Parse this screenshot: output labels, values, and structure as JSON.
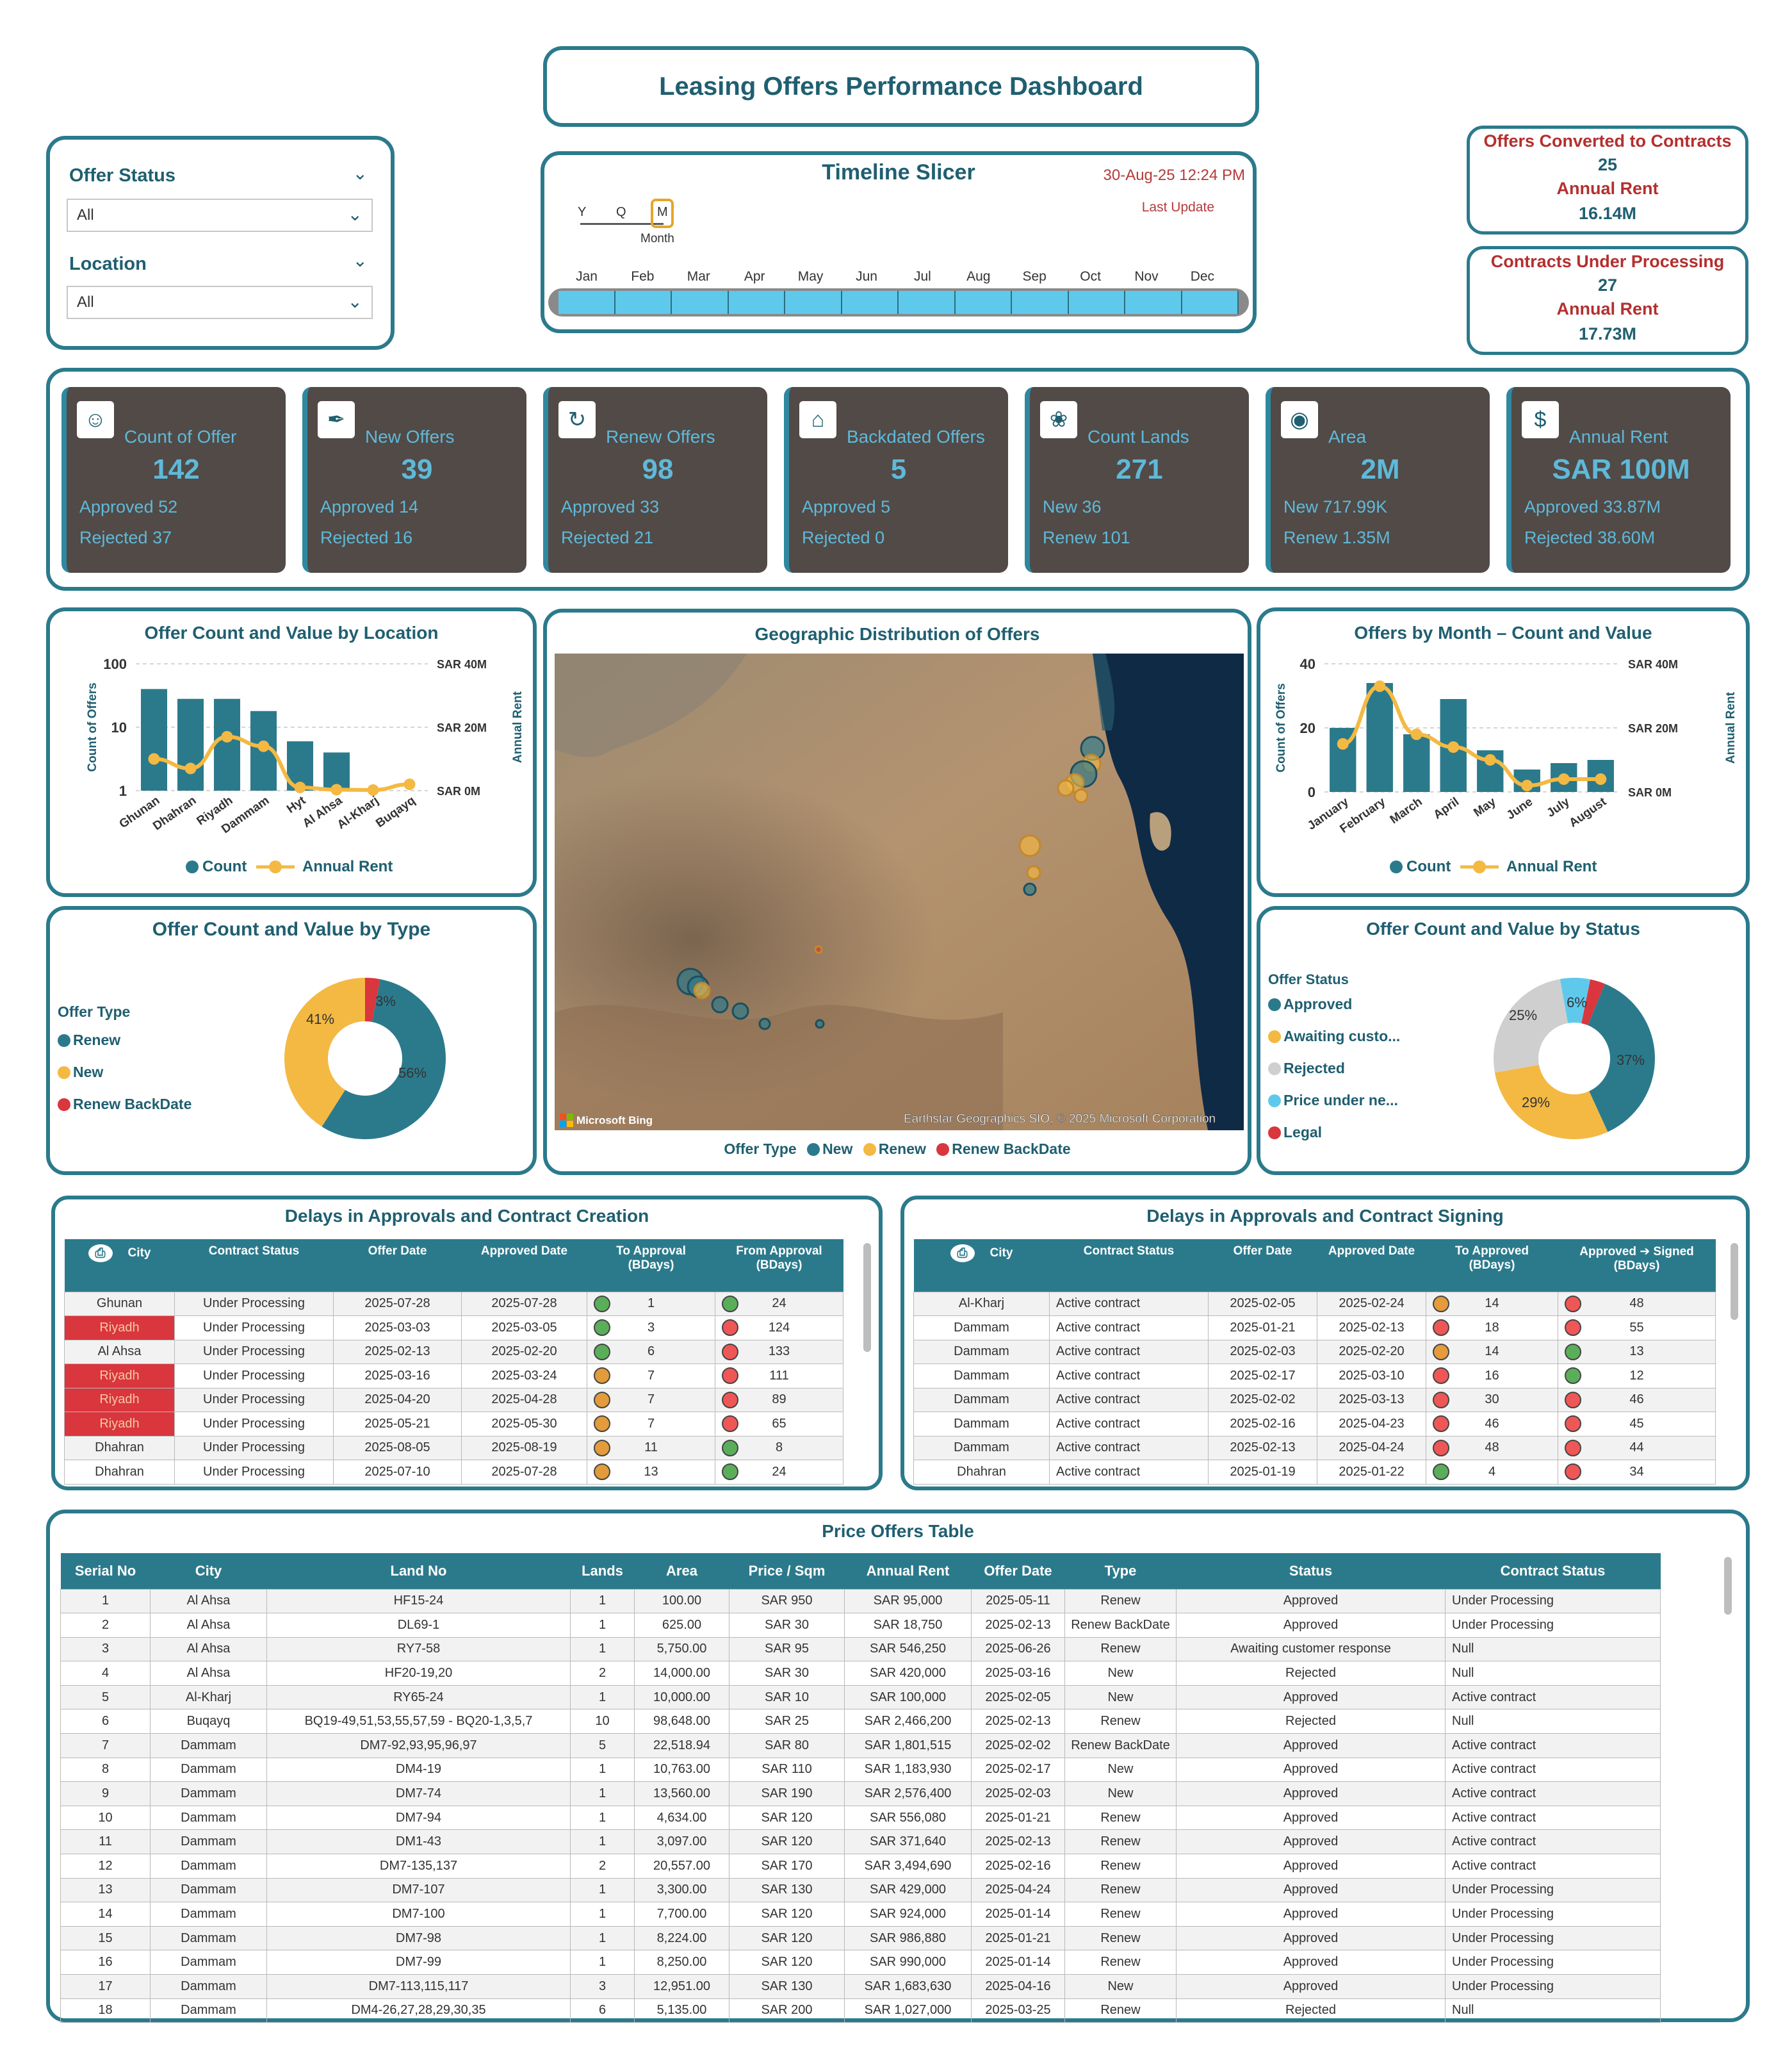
{
  "header": {
    "title": "Leasing Offers Performance Dashboard"
  },
  "slicers": {
    "offer_status": {
      "label": "Offer Status",
      "value": "All"
    },
    "location": {
      "label": "Location",
      "value": "All"
    }
  },
  "timeline": {
    "title": "Timeline Slicer",
    "date": "30-Aug-25 12:24 PM",
    "last_update": "Last Update",
    "levels": [
      "Y",
      "Q",
      "M"
    ],
    "level_caption": "Month",
    "months": [
      "Jan",
      "Feb",
      "Mar",
      "Apr",
      "May",
      "Jun",
      "Jul",
      "Aug",
      "Sep",
      "Oct",
      "Nov",
      "Dec"
    ]
  },
  "summary": {
    "converted": {
      "label": "Offers Converted to Contracts",
      "count": "25",
      "rent_label": "Annual Rent",
      "rent": "16.14M"
    },
    "processing": {
      "label": "Contracts Under Processing",
      "count": "27",
      "rent_label": "Annual Rent",
      "rent": "17.73M"
    }
  },
  "kpis": [
    {
      "name": "Count of Offer",
      "value": "142",
      "line1": "Approved 52",
      "line2": "Rejected 37",
      "icon": "people-icon"
    },
    {
      "name": "New Offers",
      "value": "39",
      "line1": "Approved 14",
      "line2": "Rejected 16",
      "icon": "tag-icon"
    },
    {
      "name": "Renew Offers",
      "value": "98",
      "line1": "Approved 33",
      "line2": "Rejected 21",
      "icon": "renew-icon"
    },
    {
      "name": "Backdated Offers",
      "value": "5",
      "line1": "Approved 5",
      "line2": "Rejected 0",
      "icon": "house-icon"
    },
    {
      "name": "Count Lands",
      "value": "271",
      "line1": "New 36",
      "line2": "Renew 101",
      "icon": "land-icon"
    },
    {
      "name": "Area",
      "value": "2M",
      "line1": "New 717.99K",
      "line2": "Renew 1.35M",
      "icon": "location-icon"
    },
    {
      "name": "Annual Rent",
      "value": "SAR 100M",
      "line1": "Approved 33.87M",
      "line2": "Rejected 38.60M",
      "icon": "money-bag-icon"
    }
  ],
  "charts_text": {
    "location_title": "Offer Count and Value by Location",
    "month_title": "Offers by Month – Count and Value",
    "map_title": "Geographic Distribution of Offers",
    "type_title": "Offer Count and Value by Type",
    "status_title": "Offer Count and Value by Status",
    "legend_count": "Count",
    "legend_rent": "Annual Rent",
    "ylabel_left": "Count of Offers",
    "ylabel_right": "Annual Rent",
    "map_legend_title": "Offer Type",
    "map_legend": [
      "New",
      "Renew",
      "Renew BackDate"
    ],
    "map_brand": "Microsoft Bing",
    "map_credit": "Earthstar Geographics SIO, © 2025 Microsoft Corporation",
    "type_legend_title": "Offer Type",
    "status_legend_title": "Offer Status"
  },
  "chart_data": [
    {
      "type": "bar",
      "title": "Offer Count and Value by Location",
      "categories": [
        "Ghunan",
        "Dhahran",
        "Riyadh",
        "Dammam",
        "Hyt",
        "Al Ahsa",
        "Al-Kharj",
        "Buqayq"
      ],
      "series": [
        {
          "name": "Count",
          "kind": "bar",
          "axis": "left-log",
          "values": [
            40,
            28,
            28,
            18,
            6,
            4,
            1,
            1
          ]
        },
        {
          "name": "Annual Rent",
          "kind": "line",
          "axis": "right",
          "values": [
            10,
            7,
            17,
            14,
            1,
            0.3,
            0.2,
            2
          ]
        }
      ],
      "yticks_left": [
        "100",
        "10",
        "1"
      ],
      "yticks_right": [
        "SAR 40M",
        "SAR 20M",
        "SAR 0M"
      ],
      "ylim_right": [
        0,
        40
      ]
    },
    {
      "type": "bar",
      "title": "Offers by Month – Count and Value",
      "categories": [
        "January",
        "February",
        "March",
        "April",
        "May",
        "June",
        "July",
        "August"
      ],
      "series": [
        {
          "name": "Count",
          "kind": "bar",
          "axis": "left",
          "values": [
            20,
            34,
            18,
            29,
            13,
            7,
            9,
            10
          ]
        },
        {
          "name": "Annual Rent",
          "kind": "line",
          "axis": "right",
          "values": [
            15,
            33,
            18,
            14,
            10,
            2,
            4,
            4
          ]
        }
      ],
      "yticks_left": [
        "40",
        "20",
        "0"
      ],
      "yticks_right": [
        "SAR 40M",
        "SAR 20M",
        "SAR 0M"
      ],
      "ylim_left": [
        0,
        40
      ],
      "ylim_right": [
        0,
        40
      ]
    },
    {
      "type": "pie",
      "title": "Offer Count and Value by Type",
      "slices": [
        {
          "name": "Renew",
          "value": 56,
          "label": "56%",
          "color": "#2b7a8c"
        },
        {
          "name": "New",
          "value": 41,
          "label": "41%",
          "color": "#f4b942"
        },
        {
          "name": "Renew BackDate",
          "value": 3,
          "label": "3%",
          "color": "#d9363e"
        }
      ]
    },
    {
      "type": "pie",
      "title": "Offer Count and Value by Status",
      "slices": [
        {
          "name": "Approved",
          "value": 37,
          "label": "37%",
          "color": "#2b7a8c"
        },
        {
          "name": "Awaiting custo...",
          "value": 29,
          "label": "29%",
          "color": "#f4b942"
        },
        {
          "name": "Rejected",
          "value": 25,
          "label": "25%",
          "color": "#cfcfcf"
        },
        {
          "name": "Price under ne...",
          "value": 6,
          "label": "6%",
          "color": "#5fc9ec"
        },
        {
          "name": "Legal",
          "value": 3,
          "label": "",
          "color": "#d9363e"
        }
      ]
    }
  ],
  "delay_approvals": {
    "title": "Delays in Approvals and Contract Creation",
    "headers": [
      "City",
      "Contract Status",
      "Offer Date",
      "Approved Date",
      "To Approval\n(BDays)",
      "From Approval\n(BDays)"
    ],
    "rows": [
      {
        "city": "Ghunan",
        "status": "Under Processing",
        "offer": "2025-07-28",
        "approved": "2025-07-28",
        "to_ind": "g",
        "to": "1",
        "from_ind": "g",
        "from": "24",
        "hl": false
      },
      {
        "city": "Riyadh",
        "status": "Under Processing",
        "offer": "2025-03-03",
        "approved": "2025-03-05",
        "to_ind": "g",
        "to": "3",
        "from_ind": "r",
        "from": "124",
        "hl": true
      },
      {
        "city": "Al Ahsa",
        "status": "Under Processing",
        "offer": "2025-02-13",
        "approved": "2025-02-20",
        "to_ind": "g",
        "to": "6",
        "from_ind": "r",
        "from": "133",
        "hl": false
      },
      {
        "city": "Riyadh",
        "status": "Under Processing",
        "offer": "2025-03-16",
        "approved": "2025-03-24",
        "to_ind": "o",
        "to": "7",
        "from_ind": "r",
        "from": "111",
        "hl": true
      },
      {
        "city": "Riyadh",
        "status": "Under Processing",
        "offer": "2025-04-20",
        "approved": "2025-04-28",
        "to_ind": "o",
        "to": "7",
        "from_ind": "r",
        "from": "89",
        "hl": true
      },
      {
        "city": "Riyadh",
        "status": "Under Processing",
        "offer": "2025-05-21",
        "approved": "2025-05-30",
        "to_ind": "o",
        "to": "7",
        "from_ind": "r",
        "from": "65",
        "hl": true
      },
      {
        "city": "Dhahran",
        "status": "Under Processing",
        "offer": "2025-08-05",
        "approved": "2025-08-19",
        "to_ind": "o",
        "to": "11",
        "from_ind": "g",
        "from": "8",
        "hl": false
      },
      {
        "city": "Dhahran",
        "status": "Under Processing",
        "offer": "2025-07-10",
        "approved": "2025-07-28",
        "to_ind": "o",
        "to": "13",
        "from_ind": "g",
        "from": "24",
        "hl": false
      }
    ]
  },
  "delay_signing": {
    "title": "Delays in Approvals and Contract Signing",
    "headers": [
      "City",
      "Contract Status",
      "Offer Date",
      "Approved Date",
      "To Approved\n(BDays)",
      "Approved ➔ Signed\n(BDays)"
    ],
    "rows": [
      {
        "city": "Al-Kharj",
        "status": "Active contract",
        "offer": "2025-02-05",
        "approved": "2025-02-24",
        "to_ind": "o",
        "to": "14",
        "from_ind": "r",
        "from": "48"
      },
      {
        "city": "Dammam",
        "status": "Active contract",
        "offer": "2025-01-21",
        "approved": "2025-02-13",
        "to_ind": "r",
        "to": "18",
        "from_ind": "r",
        "from": "55"
      },
      {
        "city": "Dammam",
        "status": "Active contract",
        "offer": "2025-02-03",
        "approved": "2025-02-20",
        "to_ind": "o",
        "to": "14",
        "from_ind": "g",
        "from": "13"
      },
      {
        "city": "Dammam",
        "status": "Active contract",
        "offer": "2025-02-17",
        "approved": "2025-03-10",
        "to_ind": "r",
        "to": "16",
        "from_ind": "g",
        "from": "12"
      },
      {
        "city": "Dammam",
        "status": "Active contract",
        "offer": "2025-02-02",
        "approved": "2025-03-13",
        "to_ind": "r",
        "to": "30",
        "from_ind": "r",
        "from": "46"
      },
      {
        "city": "Dammam",
        "status": "Active contract",
        "offer": "2025-02-16",
        "approved": "2025-04-23",
        "to_ind": "r",
        "to": "46",
        "from_ind": "r",
        "from": "45"
      },
      {
        "city": "Dammam",
        "status": "Active contract",
        "offer": "2025-02-13",
        "approved": "2025-04-24",
        "to_ind": "r",
        "to": "48",
        "from_ind": "r",
        "from": "44"
      },
      {
        "city": "Dhahran",
        "status": "Active contract",
        "offer": "2025-01-19",
        "approved": "2025-01-22",
        "to_ind": "g",
        "to": "4",
        "from_ind": "r",
        "from": "34"
      }
    ]
  },
  "price_table": {
    "title": "Price Offers Table",
    "headers": [
      "Serial No",
      "City",
      "Land No",
      "Lands",
      "Area",
      "Price / Sqm",
      "Annual Rent",
      "Offer Date",
      "Type",
      "Status",
      "Contract Status"
    ],
    "rows": [
      [
        "1",
        "Al Ahsa",
        "HF15-24",
        "1",
        "100.00",
        "SAR 950",
        "SAR 95,000",
        "2025-05-11",
        "Renew",
        "Approved",
        "Under Processing"
      ],
      [
        "2",
        "Al Ahsa",
        "DL69-1",
        "1",
        "625.00",
        "SAR 30",
        "SAR 18,750",
        "2025-02-13",
        "Renew BackDate",
        "Approved",
        "Under Processing"
      ],
      [
        "3",
        "Al Ahsa",
        "RY7-58",
        "1",
        "5,750.00",
        "SAR 95",
        "SAR 546,250",
        "2025-06-26",
        "Renew",
        "Awaiting customer response",
        "Null"
      ],
      [
        "4",
        "Al Ahsa",
        "HF20-19,20",
        "2",
        "14,000.00",
        "SAR 30",
        "SAR 420,000",
        "2025-03-16",
        "New",
        "Rejected",
        "Null"
      ],
      [
        "5",
        "Al-Kharj",
        "RY65-24",
        "1",
        "10,000.00",
        "SAR 10",
        "SAR 100,000",
        "2025-02-05",
        "New",
        "Approved",
        "Active contract"
      ],
      [
        "6",
        "Buqayq",
        "BQ19-49,51,53,55,57,59 - BQ20-1,3,5,7",
        "10",
        "98,648.00",
        "SAR 25",
        "SAR 2,466,200",
        "2025-02-13",
        "Renew",
        "Rejected",
        "Null"
      ],
      [
        "7",
        "Dammam",
        "DM7-92,93,95,96,97",
        "5",
        "22,518.94",
        "SAR 80",
        "SAR 1,801,515",
        "2025-02-02",
        "Renew BackDate",
        "Approved",
        "Active contract"
      ],
      [
        "8",
        "Dammam",
        "DM4-19",
        "1",
        "10,763.00",
        "SAR 110",
        "SAR 1,183,930",
        "2025-02-17",
        "New",
        "Approved",
        "Active contract"
      ],
      [
        "9",
        "Dammam",
        "DM7-74",
        "1",
        "13,560.00",
        "SAR 190",
        "SAR 2,576,400",
        "2025-02-03",
        "New",
        "Approved",
        "Active contract"
      ],
      [
        "10",
        "Dammam",
        "DM7-94",
        "1",
        "4,634.00",
        "SAR 120",
        "SAR 556,080",
        "2025-01-21",
        "Renew",
        "Approved",
        "Active contract"
      ],
      [
        "11",
        "Dammam",
        "DM1-43",
        "1",
        "3,097.00",
        "SAR 120",
        "SAR 371,640",
        "2025-02-13",
        "Renew",
        "Approved",
        "Active contract"
      ],
      [
        "12",
        "Dammam",
        "DM7-135,137",
        "2",
        "20,557.00",
        "SAR 170",
        "SAR 3,494,690",
        "2025-02-16",
        "Renew",
        "Approved",
        "Active contract"
      ],
      [
        "13",
        "Dammam",
        "DM7-107",
        "1",
        "3,300.00",
        "SAR 130",
        "SAR 429,000",
        "2025-04-24",
        "Renew",
        "Approved",
        "Under Processing"
      ],
      [
        "14",
        "Dammam",
        "DM7-100",
        "1",
        "7,700.00",
        "SAR 120",
        "SAR 924,000",
        "2025-01-14",
        "Renew",
        "Approved",
        "Under Processing"
      ],
      [
        "15",
        "Dammam",
        "DM7-98",
        "1",
        "8,224.00",
        "SAR 120",
        "SAR 986,880",
        "2025-01-21",
        "Renew",
        "Approved",
        "Under Processing"
      ],
      [
        "16",
        "Dammam",
        "DM7-99",
        "1",
        "8,250.00",
        "SAR 120",
        "SAR 990,000",
        "2025-01-14",
        "Renew",
        "Approved",
        "Under Processing"
      ],
      [
        "17",
        "Dammam",
        "DM7-113,115,117",
        "3",
        "12,951.00",
        "SAR 130",
        "SAR 1,683,630",
        "2025-04-16",
        "New",
        "Approved",
        "Under Processing"
      ],
      [
        "18",
        "Dammam",
        "DM4-26,27,28,29,30,35",
        "6",
        "5,135.00",
        "SAR 200",
        "SAR 1,027,000",
        "2025-03-25",
        "Renew",
        "Rejected",
        "Null"
      ]
    ]
  },
  "colors": {
    "teal": "#2b7a8c",
    "orange": "#f4b942",
    "red": "#d9363e",
    "card": "#514a47",
    "cyan": "#5fb9d9"
  }
}
